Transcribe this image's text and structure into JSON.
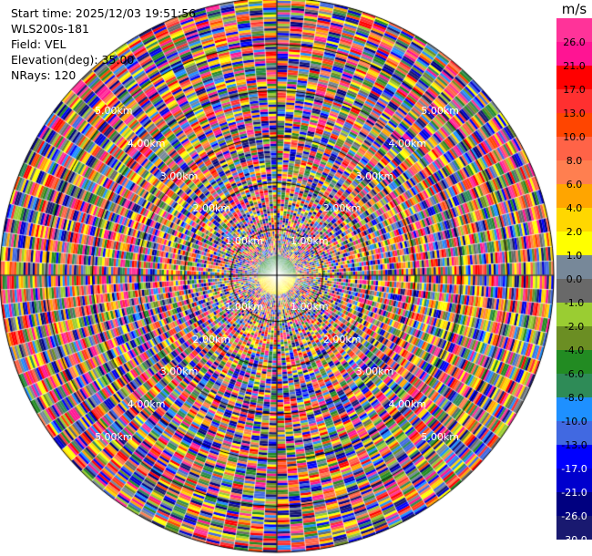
{
  "info": {
    "start_time": "Start time: 2025/12/03 19:51:56",
    "instrument": "WLS200s-181",
    "field": "Field: VEL",
    "elevation": "Elevation(deg): 35.00",
    "nrays": "NRays: 120"
  },
  "chart_data": {
    "type": "heatmap",
    "projection": "polar-ppi",
    "field": "VEL",
    "units": "m/s",
    "nrays": 120,
    "max_range_km": 6.0,
    "range_ring_labels": [
      "1.00km",
      "2.00km",
      "3.00km",
      "4.00km",
      "5.00km"
    ],
    "ring_label_angles_deg": [
      315,
      45,
      225,
      135
    ],
    "colorbar": {
      "unit": "m/s",
      "ticks": [
        "26.0",
        "21.0",
        "17.0",
        "13.0",
        "10.0",
        "8.0",
        "6.0",
        "4.0",
        "2.0",
        "1.0",
        "0.0",
        "-1.0",
        "-2.0",
        "-4.0",
        "-6.0",
        "-8.0",
        "-10.0",
        "-13.0",
        "-17.0",
        "-21.0",
        "-26.0",
        "-30.0"
      ],
      "colors": [
        "#ff3399",
        "#ff1493",
        "#ff0000",
        "#ff3030",
        "#ff4500",
        "#ff6347",
        "#ff7f50",
        "#ffa500",
        "#ffd700",
        "#ffff00",
        "#778899",
        "#696969",
        "#9acd32",
        "#6b8e23",
        "#228b22",
        "#2e8b57",
        "#1e90ff",
        "#4169e1",
        "#0000ff",
        "#0000cd",
        "#000080",
        "#191970"
      ]
    }
  }
}
